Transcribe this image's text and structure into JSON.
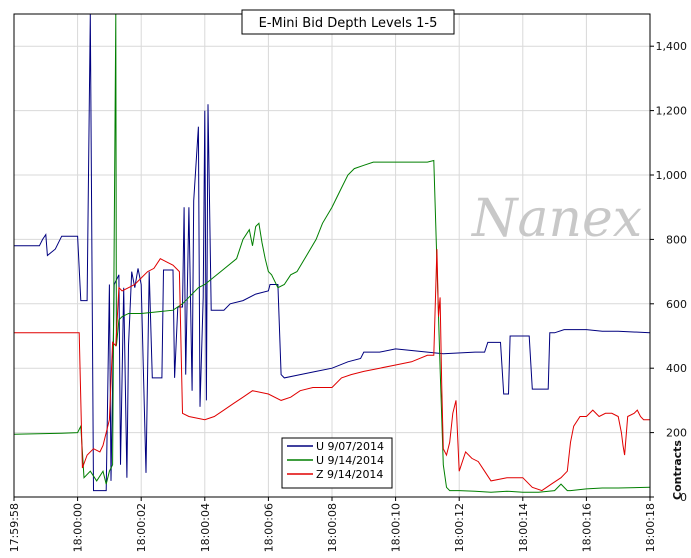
{
  "chart_data": {
    "type": "line",
    "title": "E-Mini Bid Depth Levels 1-5",
    "watermark": "Nanex",
    "ylabel": "Contracts",
    "ylim": [
      0,
      1500
    ],
    "y_ticks": [
      0,
      200,
      400,
      600,
      800,
      "1,000",
      "1,200",
      "1,400"
    ],
    "y_tick_values": [
      0,
      200,
      400,
      600,
      800,
      1000,
      1200,
      1400
    ],
    "x_ticks": [
      "17:59:58",
      "18:00:00",
      "18:00:02",
      "18:00:04",
      "18:00:06",
      "18:00:08",
      "18:00:10",
      "18:00:12",
      "18:00:14",
      "18:00:16",
      "18:00:18"
    ],
    "xlim_seconds": [
      0,
      20
    ],
    "grid": true,
    "legend_position": "bottom-center",
    "series": [
      {
        "name": "U 9/07/2014",
        "color": "#00007f",
        "points": [
          [
            0,
            780
          ],
          [
            0.8,
            780
          ],
          [
            0.9,
            800
          ],
          [
            1.0,
            815
          ],
          [
            1.05,
            750
          ],
          [
            1.3,
            770
          ],
          [
            1.5,
            810
          ],
          [
            2.0,
            810
          ],
          [
            2.1,
            610
          ],
          [
            2.3,
            610
          ],
          [
            2.4,
            1500
          ],
          [
            2.5,
            20
          ],
          [
            2.9,
            20
          ],
          [
            3.0,
            660
          ],
          [
            3.05,
            50
          ],
          [
            3.15,
            660
          ],
          [
            3.3,
            690
          ],
          [
            3.35,
            100
          ],
          [
            3.45,
            650
          ],
          [
            3.55,
            60
          ],
          [
            3.6,
            470
          ],
          [
            3.7,
            700
          ],
          [
            3.8,
            650
          ],
          [
            3.9,
            710
          ],
          [
            4.0,
            660
          ],
          [
            4.15,
            75
          ],
          [
            4.25,
            700
          ],
          [
            4.35,
            370
          ],
          [
            4.65,
            370
          ],
          [
            4.7,
            705
          ],
          [
            5.0,
            705
          ],
          [
            5.05,
            370
          ],
          [
            5.15,
            590
          ],
          [
            5.3,
            590
          ],
          [
            5.35,
            900
          ],
          [
            5.4,
            380
          ],
          [
            5.5,
            900
          ],
          [
            5.6,
            330
          ],
          [
            5.65,
            920
          ],
          [
            5.8,
            1150
          ],
          [
            5.85,
            280
          ],
          [
            5.95,
            620
          ],
          [
            6.0,
            1200
          ],
          [
            6.05,
            300
          ],
          [
            6.1,
            1220
          ],
          [
            6.2,
            580
          ],
          [
            6.6,
            580
          ],
          [
            6.8,
            600
          ],
          [
            7.2,
            610
          ],
          [
            7.6,
            630
          ],
          [
            8.0,
            640
          ],
          [
            8.05,
            660
          ],
          [
            8.3,
            660
          ],
          [
            8.4,
            380
          ],
          [
            8.5,
            370
          ],
          [
            9.0,
            380
          ],
          [
            9.5,
            390
          ],
          [
            10.0,
            400
          ],
          [
            10.5,
            420
          ],
          [
            10.9,
            430
          ],
          [
            11.0,
            450
          ],
          [
            11.5,
            450
          ],
          [
            12.0,
            460
          ],
          [
            12.5,
            455
          ],
          [
            13.0,
            450
          ],
          [
            13.5,
            445
          ],
          [
            14.5,
            450
          ],
          [
            14.8,
            450
          ],
          [
            14.9,
            480
          ],
          [
            15.3,
            480
          ],
          [
            15.4,
            320
          ],
          [
            15.55,
            320
          ],
          [
            15.6,
            500
          ],
          [
            16.2,
            500
          ],
          [
            16.3,
            335
          ],
          [
            16.8,
            335
          ],
          [
            16.85,
            510
          ],
          [
            17.0,
            510
          ],
          [
            17.3,
            520
          ],
          [
            18.0,
            520
          ],
          [
            18.5,
            515
          ],
          [
            19.0,
            515
          ],
          [
            20.0,
            510
          ]
        ]
      },
      {
        "name": "U 9/14/2014",
        "color": "#007f00",
        "points": [
          [
            0,
            195
          ],
          [
            1.5,
            198
          ],
          [
            2.0,
            200
          ],
          [
            2.1,
            220
          ],
          [
            2.2,
            60
          ],
          [
            2.4,
            80
          ],
          [
            2.6,
            50
          ],
          [
            2.8,
            80
          ],
          [
            2.9,
            40
          ],
          [
            3.0,
            80
          ],
          [
            3.1,
            100
          ],
          [
            3.2,
            1500
          ],
          [
            3.22,
            470
          ],
          [
            3.3,
            550
          ],
          [
            3.4,
            560
          ],
          [
            3.6,
            570
          ],
          [
            4.0,
            570
          ],
          [
            4.5,
            575
          ],
          [
            5.0,
            580
          ],
          [
            5.3,
            600
          ],
          [
            5.8,
            650
          ],
          [
            6.0,
            660
          ],
          [
            6.5,
            700
          ],
          [
            7.0,
            740
          ],
          [
            7.2,
            800
          ],
          [
            7.4,
            830
          ],
          [
            7.5,
            780
          ],
          [
            7.6,
            840
          ],
          [
            7.7,
            850
          ],
          [
            7.8,
            790
          ],
          [
            7.9,
            740
          ],
          [
            8.0,
            700
          ],
          [
            8.1,
            690
          ],
          [
            8.3,
            650
          ],
          [
            8.5,
            660
          ],
          [
            8.7,
            690
          ],
          [
            8.9,
            700
          ],
          [
            9.2,
            750
          ],
          [
            9.5,
            800
          ],
          [
            9.7,
            850
          ],
          [
            10.0,
            900
          ],
          [
            10.3,
            960
          ],
          [
            10.5,
            1000
          ],
          [
            10.7,
            1020
          ],
          [
            11.0,
            1030
          ],
          [
            11.3,
            1040
          ],
          [
            12.0,
            1040
          ],
          [
            13.0,
            1040
          ],
          [
            13.2,
            1045
          ],
          [
            13.4,
            400
          ],
          [
            13.5,
            100
          ],
          [
            13.6,
            30
          ],
          [
            13.7,
            20
          ],
          [
            14.0,
            20
          ],
          [
            14.5,
            18
          ],
          [
            15.0,
            15
          ],
          [
            15.5,
            18
          ],
          [
            16.0,
            15
          ],
          [
            16.5,
            15
          ],
          [
            17.0,
            20
          ],
          [
            17.2,
            40
          ],
          [
            17.4,
            20
          ],
          [
            17.5,
            20
          ],
          [
            18.0,
            25
          ],
          [
            18.5,
            28
          ],
          [
            19.0,
            28
          ],
          [
            20.0,
            30
          ]
        ]
      },
      {
        "name": "Z 9/14/2014",
        "color": "#e00000",
        "points": [
          [
            0,
            510
          ],
          [
            0.5,
            510
          ],
          [
            1.0,
            510
          ],
          [
            1.5,
            510
          ],
          [
            2.05,
            510
          ],
          [
            2.15,
            90
          ],
          [
            2.3,
            130
          ],
          [
            2.5,
            150
          ],
          [
            2.7,
            140
          ],
          [
            2.8,
            160
          ],
          [
            2.9,
            200
          ],
          [
            3.0,
            240
          ],
          [
            3.1,
            480
          ],
          [
            3.2,
            470
          ],
          [
            3.3,
            650
          ],
          [
            3.4,
            640
          ],
          [
            3.6,
            650
          ],
          [
            3.8,
            660
          ],
          [
            4.0,
            680
          ],
          [
            4.2,
            700
          ],
          [
            4.4,
            710
          ],
          [
            4.6,
            740
          ],
          [
            4.8,
            730
          ],
          [
            5.0,
            720
          ],
          [
            5.2,
            700
          ],
          [
            5.3,
            260
          ],
          [
            5.5,
            250
          ],
          [
            6.0,
            240
          ],
          [
            6.3,
            250
          ],
          [
            6.6,
            270
          ],
          [
            6.9,
            290
          ],
          [
            7.2,
            310
          ],
          [
            7.5,
            330
          ],
          [
            8.0,
            320
          ],
          [
            8.4,
            300
          ],
          [
            8.7,
            310
          ],
          [
            9.0,
            330
          ],
          [
            9.4,
            340
          ],
          [
            10.0,
            340
          ],
          [
            10.3,
            370
          ],
          [
            10.6,
            380
          ],
          [
            11.0,
            390
          ],
          [
            11.5,
            400
          ],
          [
            12.0,
            410
          ],
          [
            12.5,
            420
          ],
          [
            13.0,
            440
          ],
          [
            13.2,
            440
          ],
          [
            13.3,
            770
          ],
          [
            13.35,
            560
          ],
          [
            13.4,
            620
          ],
          [
            13.45,
            350
          ],
          [
            13.5,
            150
          ],
          [
            13.6,
            130
          ],
          [
            13.7,
            170
          ],
          [
            13.8,
            260
          ],
          [
            13.9,
            300
          ],
          [
            14.0,
            80
          ],
          [
            14.2,
            140
          ],
          [
            14.4,
            120
          ],
          [
            14.6,
            110
          ],
          [
            14.8,
            80
          ],
          [
            15.0,
            50
          ],
          [
            15.5,
            60
          ],
          [
            16.0,
            60
          ],
          [
            16.3,
            30
          ],
          [
            16.6,
            20
          ],
          [
            16.9,
            40
          ],
          [
            17.2,
            60
          ],
          [
            17.4,
            80
          ],
          [
            17.5,
            170
          ],
          [
            17.6,
            220
          ],
          [
            17.8,
            250
          ],
          [
            18.0,
            250
          ],
          [
            18.2,
            270
          ],
          [
            18.4,
            250
          ],
          [
            18.6,
            260
          ],
          [
            18.8,
            260
          ],
          [
            19.0,
            250
          ],
          [
            19.1,
            200
          ],
          [
            19.15,
            160
          ],
          [
            19.2,
            130
          ],
          [
            19.3,
            250
          ],
          [
            19.5,
            260
          ],
          [
            19.6,
            270
          ],
          [
            19.7,
            250
          ],
          [
            19.8,
            240
          ],
          [
            20.0,
            240
          ]
        ]
      }
    ]
  }
}
